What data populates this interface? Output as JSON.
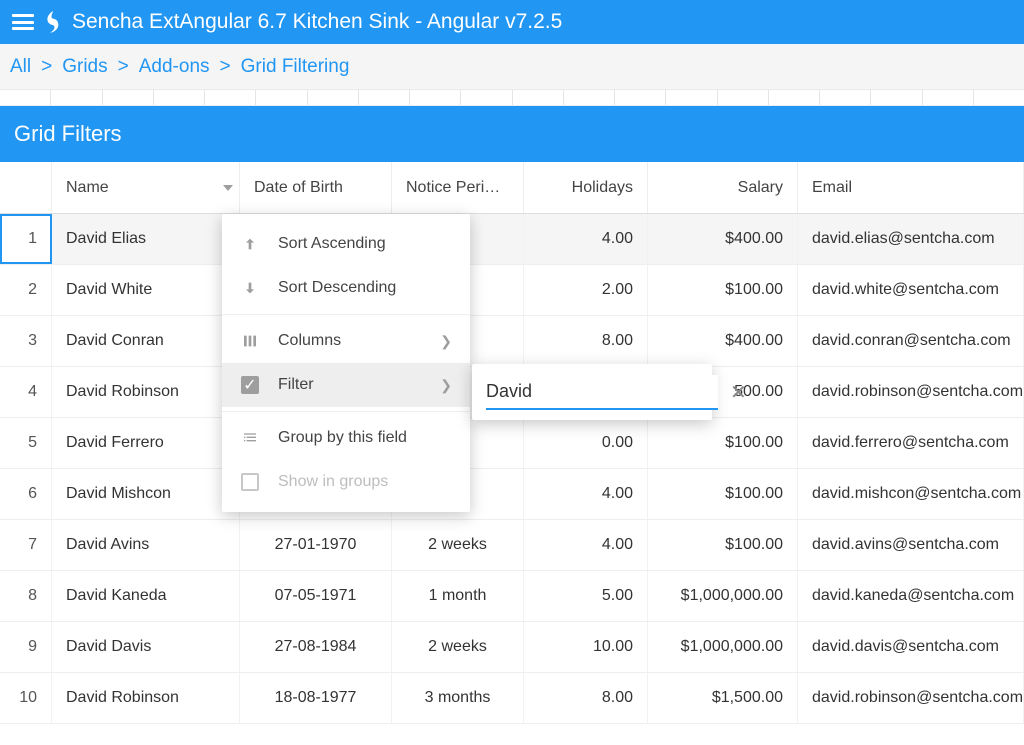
{
  "colors": {
    "brand": "#2196f3"
  },
  "topbar": {
    "title": "Sencha ExtAngular 6.7 Kitchen Sink - Angular v7.2.5"
  },
  "breadcrumb": [
    "All",
    "Grids",
    "Add-ons",
    "Grid Filtering"
  ],
  "panel": {
    "title": "Grid Filters"
  },
  "grid": {
    "columns": [
      {
        "key": "idx",
        "label": "",
        "align": "num"
      },
      {
        "key": "name",
        "label": "Name",
        "align": "left",
        "menuTrigger": true
      },
      {
        "key": "dob",
        "label": "Date of Birth",
        "align": "left"
      },
      {
        "key": "notice",
        "label": "Notice Peri…",
        "align": "left"
      },
      {
        "key": "holidays",
        "label": "Holidays",
        "align": "right"
      },
      {
        "key": "salary",
        "label": "Salary",
        "align": "right"
      },
      {
        "key": "email",
        "label": "Email",
        "align": "left"
      }
    ],
    "rows": [
      {
        "idx": "1",
        "name": "David Elias",
        "dob": "",
        "notice": "",
        "holidays": "4.00",
        "salary": "$400.00",
        "email": "david.elias@sentcha.com",
        "selected": true
      },
      {
        "idx": "2",
        "name": "David White",
        "dob": "",
        "notice": "",
        "holidays": "2.00",
        "salary": "$100.00",
        "email": "david.white@sentcha.com"
      },
      {
        "idx": "3",
        "name": "David Conran",
        "dob": "",
        "notice": "",
        "holidays": "8.00",
        "salary": "$400.00",
        "email": "david.conran@sentcha.com"
      },
      {
        "idx": "4",
        "name": "David Robinson",
        "dob": "",
        "notice": "",
        "holidays": "",
        "salary": "500.00",
        "email": "david.robinson@sentcha.com"
      },
      {
        "idx": "5",
        "name": "David Ferrero",
        "dob": "",
        "notice": "",
        "holidays": "0.00",
        "salary": "$100.00",
        "email": "david.ferrero@sentcha.com"
      },
      {
        "idx": "6",
        "name": "David Mishcon",
        "dob": "",
        "notice": "",
        "holidays": "4.00",
        "salary": "$100.00",
        "email": "david.mishcon@sentcha.com"
      },
      {
        "idx": "7",
        "name": "David Avins",
        "dob": "27-01-1970",
        "notice": "2 weeks",
        "holidays": "4.00",
        "salary": "$100.00",
        "email": "david.avins@sentcha.com"
      },
      {
        "idx": "8",
        "name": "David Kaneda",
        "dob": "07-05-1971",
        "notice": "1 month",
        "holidays": "5.00",
        "salary": "$1,000,000.00",
        "email": "david.kaneda@sentcha.com"
      },
      {
        "idx": "9",
        "name": "David Davis",
        "dob": "27-08-1984",
        "notice": "2 weeks",
        "holidays": "10.00",
        "salary": "$1,000,000.00",
        "email": "david.davis@sentcha.com"
      },
      {
        "idx": "10",
        "name": "David Robinson",
        "dob": "18-08-1977",
        "notice": "3 months",
        "holidays": "8.00",
        "salary": "$1,500.00",
        "email": "david.robinson@sentcha.com"
      }
    ]
  },
  "columnMenu": {
    "items": [
      {
        "icon": "arrow-up",
        "label": "Sort Ascending"
      },
      {
        "icon": "arrow-down",
        "label": "Sort Descending"
      },
      {
        "sep": true
      },
      {
        "icon": "columns",
        "label": "Columns",
        "submenu": true
      },
      {
        "icon": "check-on",
        "label": "Filter",
        "submenu": true,
        "active": true
      },
      {
        "sep": true
      },
      {
        "icon": "group",
        "label": "Group by this field"
      },
      {
        "icon": "check-off",
        "label": "Show in groups",
        "disabled": true
      }
    ]
  },
  "filterFlyout": {
    "value": "David"
  }
}
